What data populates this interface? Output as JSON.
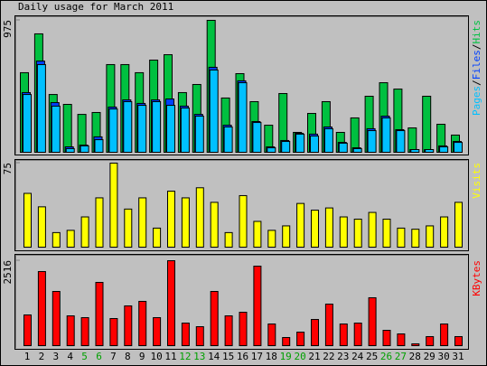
{
  "chart_data": [
    {
      "type": "bar",
      "title": "Daily usage for March 2011",
      "ylim": [
        0,
        975
      ],
      "yticks": [
        975
      ],
      "legend_separator": "/",
      "series": [
        {
          "name": "Pages",
          "color": "#00c0ff",
          "values": [
            427,
            648,
            341,
            27,
            47,
            93,
            320,
            374,
            347,
            374,
            347,
            327,
            267,
            608,
            187,
            514,
            220,
            33,
            80,
            134,
            120,
            174,
            67,
            27,
            160,
            254,
            160,
            20,
            20,
            40,
            73
          ]
        },
        {
          "name": "Files",
          "color": "#0040ff",
          "values": [
            441,
            674,
            367,
            40,
            53,
            114,
            334,
            387,
            361,
            387,
            394,
            341,
            280,
            628,
            200,
            528,
            227,
            40,
            87,
            140,
            134,
            187,
            73,
            33,
            174,
            267,
            167,
            20,
            20,
            47,
            80
          ]
        },
        {
          "name": "Hits",
          "color": "#00c040",
          "values": [
            588,
            875,
            427,
            354,
            280,
            294,
            648,
            648,
            588,
            681,
            721,
            441,
            501,
            975,
            401,
            581,
            374,
            200,
            434,
            147,
            287,
            374,
            147,
            254,
            414,
            514,
            467,
            180,
            414,
            207,
            127
          ]
        }
      ]
    },
    {
      "type": "bar",
      "ylim": [
        0,
        75
      ],
      "yticks": [
        75
      ],
      "series": [
        {
          "name": "Visits",
          "color": "#ffff00",
          "values": [
            48,
            36,
            13,
            15,
            27,
            44,
            75,
            34,
            44,
            17,
            50,
            44,
            53,
            40,
            13,
            46,
            23,
            15,
            19,
            39,
            33,
            35,
            27,
            25,
            31,
            25,
            17,
            16,
            19,
            27,
            40
          ]
        }
      ]
    },
    {
      "type": "bar",
      "ylim": [
        0,
        2516
      ],
      "yticks": [
        2516
      ],
      "categories": [
        1,
        2,
        3,
        4,
        5,
        6,
        7,
        8,
        9,
        10,
        11,
        12,
        13,
        14,
        15,
        16,
        17,
        18,
        19,
        20,
        21,
        22,
        23,
        24,
        25,
        26,
        27,
        28,
        29,
        30,
        31
      ],
      "weekends": [
        5,
        6,
        12,
        13,
        19,
        20,
        26,
        27
      ],
      "weekend_color": "#00a000",
      "series": [
        {
          "name": "KBytes",
          "color": "#ff0000",
          "values": [
            910,
            2195,
            1606,
            883,
            830,
            1874,
            803,
            1178,
            1312,
            830,
            2516,
            669,
            562,
            1606,
            883,
            990,
            2355,
            642,
            241,
            401,
            776,
            1231,
            642,
            669,
            1419,
            455,
            348,
            54,
            268,
            642,
            268
          ]
        }
      ]
    }
  ]
}
